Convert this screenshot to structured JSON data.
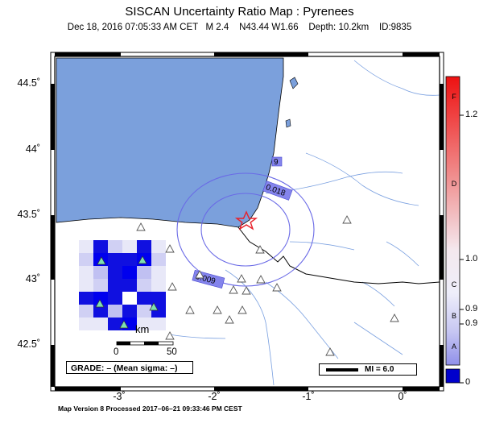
{
  "title": "SISCAN Uncertainty Ratio Map : Pyrenees",
  "subtitle": "Dec 18, 2016 07:05:33 AM CET   M 2.4    N43.44 W1.66    Depth: 10.2km    ID:9835",
  "lat_labels": [
    "44.5˚",
    "44˚",
    "43.5˚",
    "43˚",
    "42.5˚"
  ],
  "lon_labels": [
    "-3˚",
    "-2˚",
    "-1˚",
    "0˚"
  ],
  "colorbar": {
    "values": [
      "1.2",
      "1.0",
      "0.9",
      "0.9",
      "0"
    ],
    "grades": [
      "F",
      "D",
      "C",
      "B",
      "A"
    ]
  },
  "contour_labels": [
    "9",
    "0.018",
    "0.009"
  ],
  "scale_bar": {
    "unit": "km",
    "ticks": [
      "0",
      "50"
    ]
  },
  "grade_text": "GRADE: – (Mean sigma: –)",
  "mi_text": "MI = 6.0",
  "footer": "Map Version 8 Processed 2017–06–21 09:33:46 PM CEST",
  "colors": {
    "sea": "#7ba0dc",
    "epicenter": "#e8202a",
    "station_used": "#7ee0b0",
    "grid_cell": "#1010e0"
  }
}
